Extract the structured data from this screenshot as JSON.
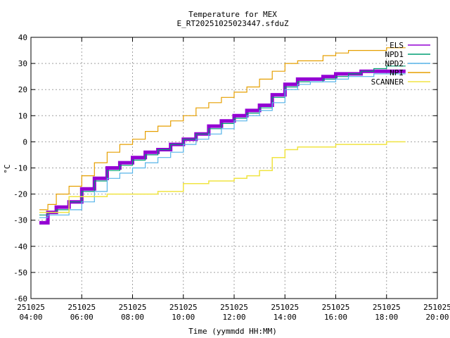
{
  "chart_data": {
    "type": "line",
    "title": "Temperature for MEX",
    "subtitle": "E_RT20251025023447.sfduZ",
    "xlabel": "Time (yymmdd HH:MM)",
    "ylabel": "°C",
    "ylim": [
      -60,
      40
    ],
    "xlim": [
      "251025 04:00",
      "251025 20:00"
    ],
    "grid": true,
    "legend_position": "top-right",
    "x_ticks": [
      {
        "date": "251025",
        "time": "04:00"
      },
      {
        "date": "251025",
        "time": "06:00"
      },
      {
        "date": "251025",
        "time": "08:00"
      },
      {
        "date": "251025",
        "time": "10:00"
      },
      {
        "date": "251025",
        "time": "12:00"
      },
      {
        "date": "251025",
        "time": "14:00"
      },
      {
        "date": "251025",
        "time": "16:00"
      },
      {
        "date": "251025",
        "time": "18:00"
      },
      {
        "date": "251025",
        "time": "20:00"
      }
    ],
    "y_ticks": [
      "40",
      "30",
      "20",
      "10",
      "0",
      "-10",
      "-20",
      "-30",
      "-40",
      "-50",
      "-60"
    ],
    "series": [
      {
        "name": "ELS",
        "color": "#9400d3",
        "x": [
          "04:20",
          "04:40",
          "05:00",
          "05:30",
          "06:00",
          "06:30",
          "07:00",
          "07:30",
          "08:00",
          "08:30",
          "09:00",
          "09:30",
          "10:00",
          "10:30",
          "11:00",
          "11:30",
          "12:00",
          "12:30",
          "13:00",
          "13:30",
          "14:00",
          "14:30",
          "15:00",
          "15:30",
          "16:00",
          "16:30",
          "17:00",
          "17:30",
          "18:00",
          "18:30",
          "18:45"
        ],
        "y": [
          -31,
          -27,
          -25,
          -23,
          -18,
          -14,
          -10,
          -8,
          -6,
          -4,
          -3,
          -1,
          1,
          3,
          6,
          8,
          10,
          12,
          14,
          18,
          22,
          24,
          24,
          25,
          26,
          26,
          27,
          27,
          27,
          27,
          27
        ]
      },
      {
        "name": "NPD1",
        "color": "#009e73",
        "x": [
          "04:20",
          "04:40",
          "05:00",
          "05:30",
          "06:00",
          "06:30",
          "07:00",
          "07:30",
          "08:00",
          "08:30",
          "09:00",
          "09:30",
          "10:00",
          "10:30",
          "11:00",
          "11:30",
          "12:00",
          "12:30",
          "13:00",
          "13:30",
          "14:00",
          "14:30",
          "15:00",
          "15:30",
          "16:00",
          "16:30",
          "17:00",
          "17:30",
          "18:00",
          "18:30",
          "18:45"
        ],
        "y": [
          -28,
          -27,
          -26,
          -23,
          -19,
          -15,
          -11,
          -9,
          -7,
          -5,
          -3,
          -1,
          1,
          3,
          5,
          7,
          9,
          11,
          13,
          17,
          21,
          23,
          23,
          24,
          25,
          26,
          27,
          28,
          29,
          29,
          29
        ]
      },
      {
        "name": "NPD2",
        "color": "#56b4e9",
        "x": [
          "04:20",
          "04:40",
          "05:00",
          "05:30",
          "06:00",
          "06:30",
          "07:00",
          "07:30",
          "08:00",
          "08:30",
          "09:00",
          "09:30",
          "10:00",
          "10:30",
          "11:00",
          "11:30",
          "12:00",
          "12:30",
          "13:00",
          "13:30",
          "14:00",
          "14:30",
          "15:00",
          "15:30",
          "16:00",
          "16:30",
          "17:00",
          "17:30",
          "18:00",
          "18:30",
          "18:45"
        ],
        "y": [
          -29,
          -28,
          -28,
          -26,
          -23,
          -19,
          -14,
          -12,
          -10,
          -8,
          -6,
          -4,
          -1,
          1,
          3,
          5,
          8,
          10,
          12,
          15,
          20,
          22,
          23,
          23,
          24,
          25,
          25,
          26,
          26,
          26,
          26
        ]
      },
      {
        "name": "NPI",
        "color": "#e69f00",
        "x": [
          "04:20",
          "04:40",
          "05:00",
          "05:30",
          "06:00",
          "06:30",
          "07:00",
          "07:30",
          "08:00",
          "08:30",
          "09:00",
          "09:30",
          "10:00",
          "10:30",
          "11:00",
          "11:30",
          "12:00",
          "12:30",
          "13:00",
          "13:30",
          "14:00",
          "14:30",
          "15:00",
          "15:30",
          "16:00",
          "16:30",
          "17:00",
          "17:30",
          "18:00",
          "18:30",
          "18:45"
        ],
        "y": [
          -26,
          -24,
          -20,
          -17,
          -13,
          -8,
          -4,
          -1,
          1,
          4,
          6,
          8,
          10,
          13,
          15,
          17,
          19,
          21,
          24,
          27,
          30,
          31,
          31,
          33,
          34,
          35,
          35,
          35,
          36,
          36,
          36
        ]
      },
      {
        "name": "SCANNER",
        "color": "#f0e442",
        "x": [
          "04:20",
          "05:00",
          "05:30",
          "06:00",
          "07:00",
          "08:00",
          "09:00",
          "10:00",
          "11:00",
          "12:00",
          "12:30",
          "13:00",
          "13:30",
          "14:00",
          "14:30",
          "15:00",
          "15:30",
          "16:00",
          "17:00",
          "18:00",
          "18:30",
          "18:45"
        ],
        "y": [
          -27,
          -27,
          -21,
          -21,
          -20,
          -20,
          -19,
          -16,
          -15,
          -14,
          -13,
          -11,
          -6,
          -3,
          -2,
          -2,
          -2,
          -1,
          -1,
          0,
          0,
          0
        ]
      }
    ]
  }
}
